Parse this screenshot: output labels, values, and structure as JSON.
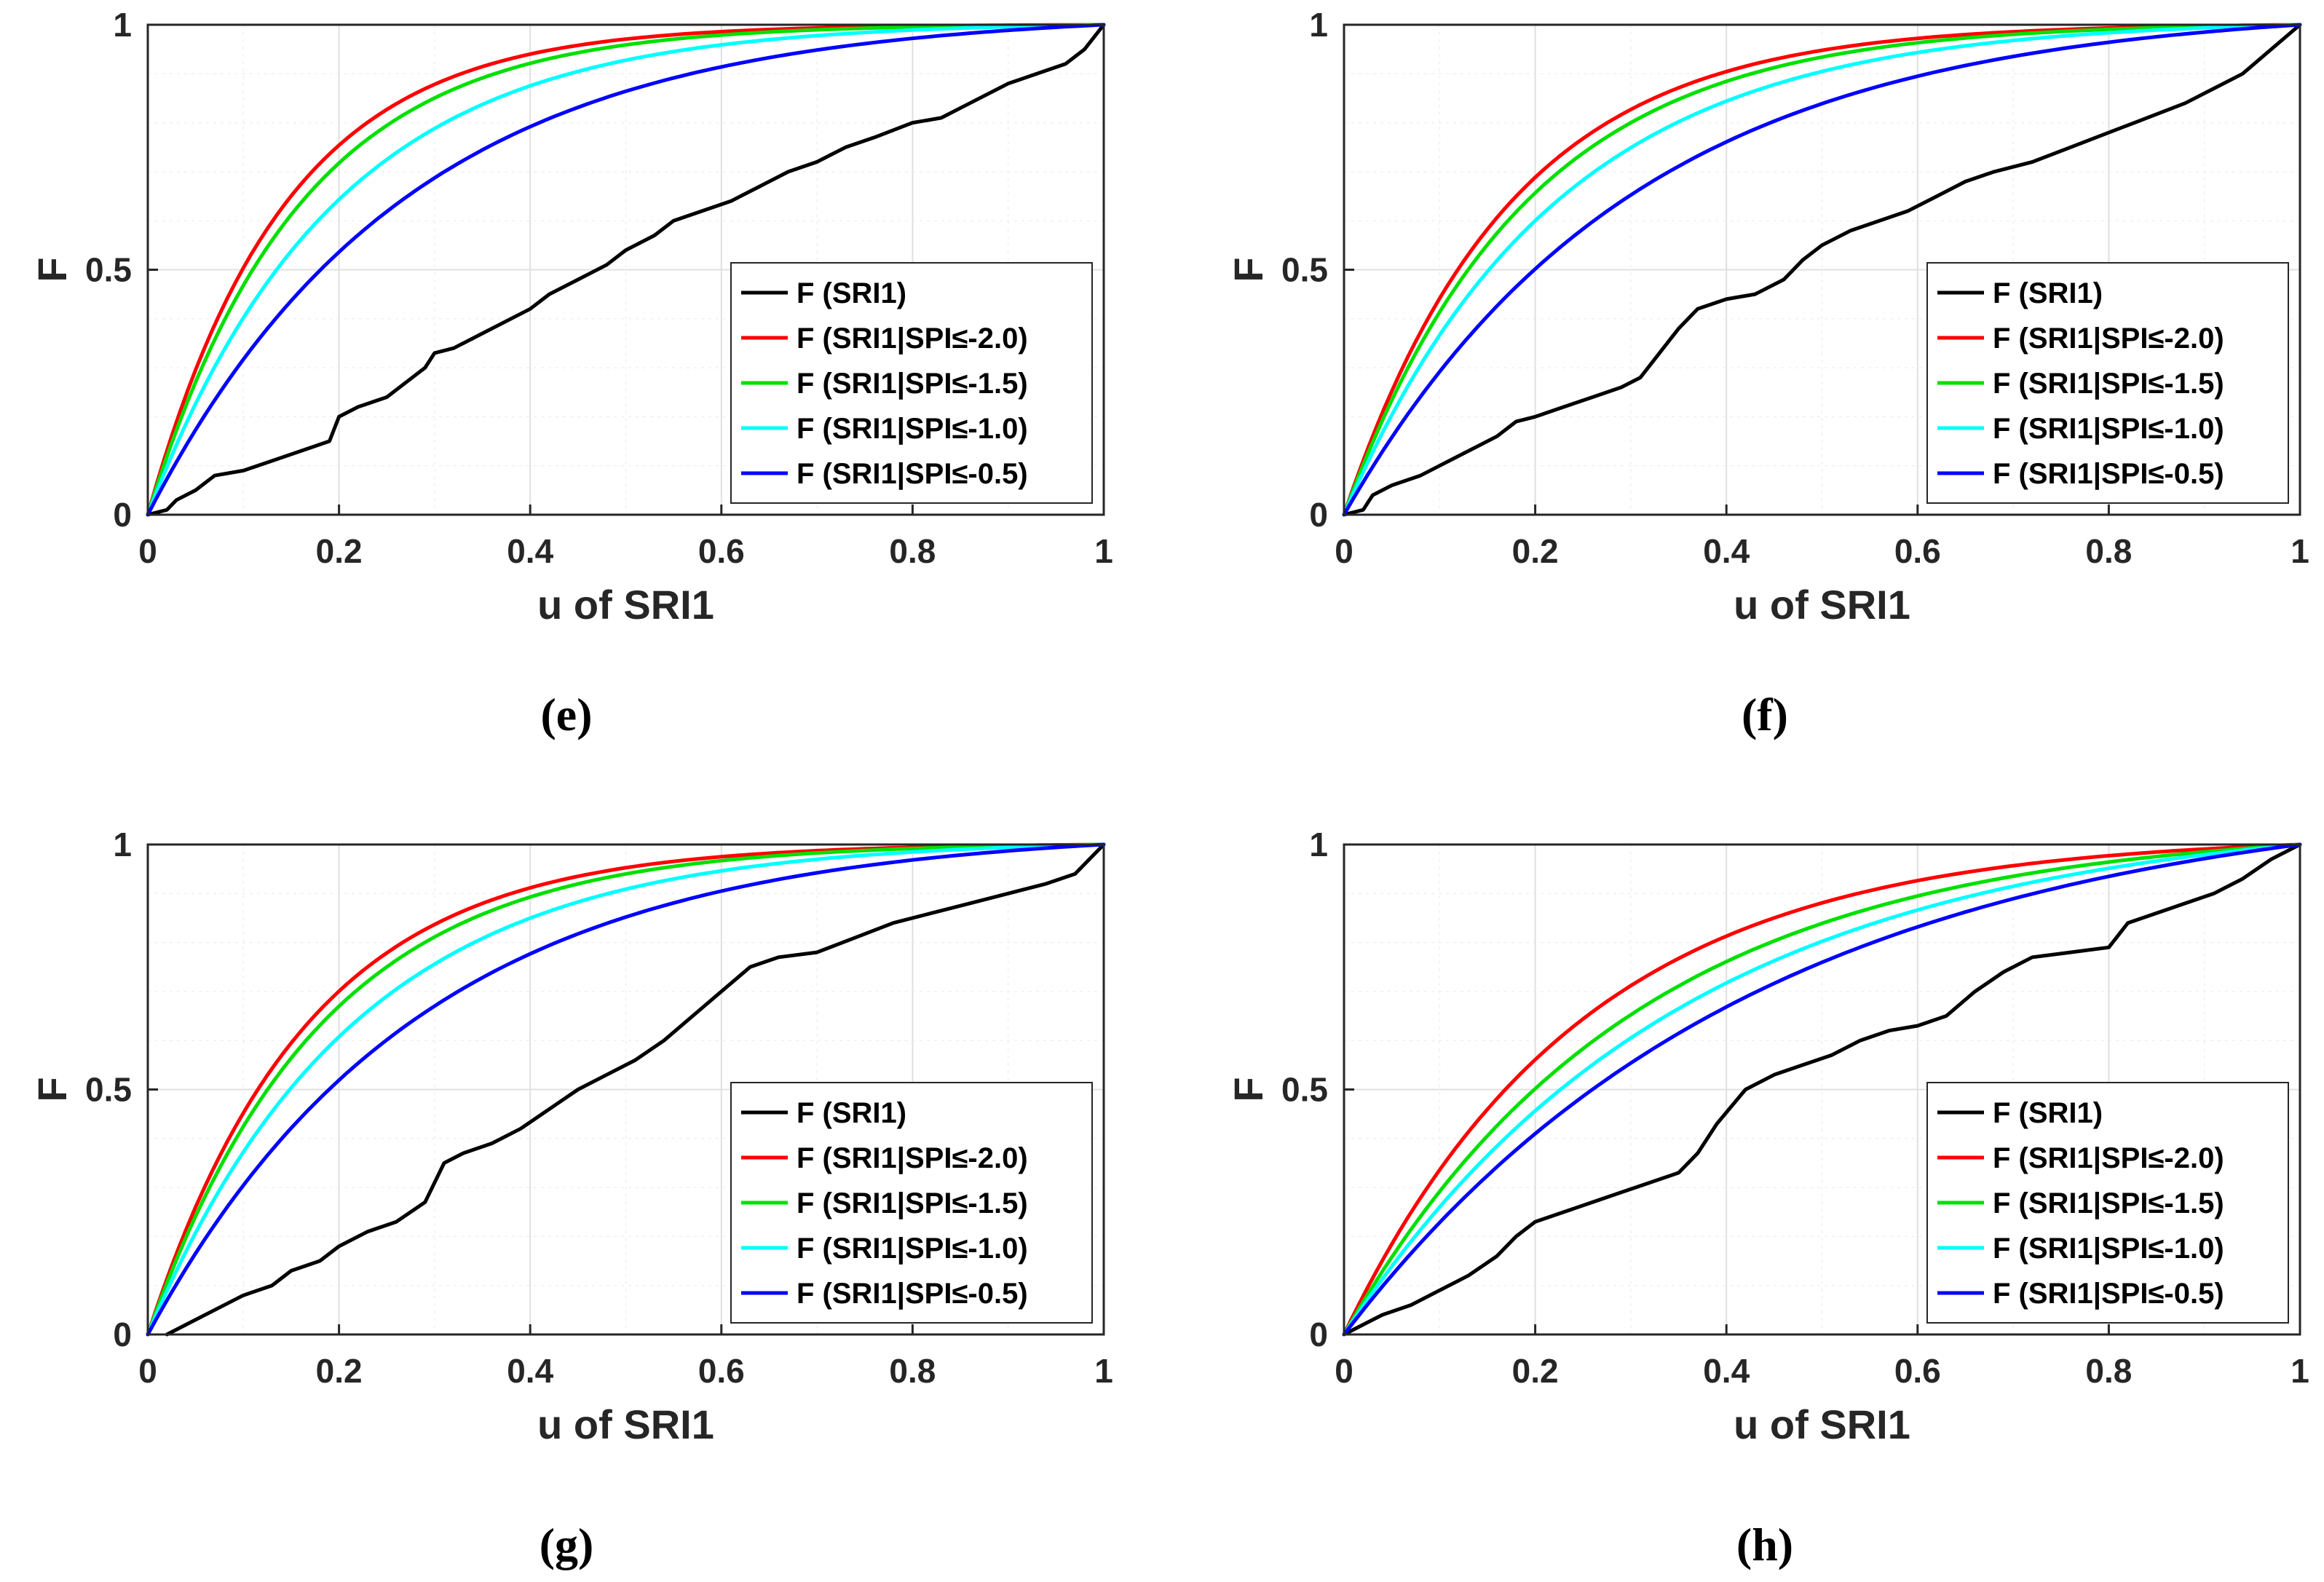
{
  "figure": {
    "colors": {
      "F (SRI1)": "#000000",
      "F (SRI1|SPI≤-2.0)": "#ff0000",
      "F (SRI1|SPI≤-1.5)": "#00e000",
      "F (SRI1|SPI≤-1.0)": "#00ffff",
      "F (SRI1|SPI≤-0.5)": "#0000ff"
    }
  },
  "chart_data": [
    {
      "type": "line",
      "caption": "(e)",
      "xlabel": "u of SRI1",
      "ylabel": "F",
      "xlim": [
        0,
        1
      ],
      "ylim": [
        0,
        1
      ],
      "xticks": [
        "0",
        "0.2",
        "0.4",
        "0.6",
        "0.8",
        "1"
      ],
      "yticks": [
        "0",
        "0.5",
        "1"
      ],
      "grid": true,
      "legend_position": "bottom-right",
      "series": [
        {
          "name": "F (SRI1)",
          "x": [
            0,
            0.02,
            0.03,
            0.05,
            0.07,
            0.1,
            0.13,
            0.16,
            0.19,
            0.2,
            0.22,
            0.25,
            0.27,
            0.29,
            0.3,
            0.32,
            0.35,
            0.38,
            0.4,
            0.42,
            0.45,
            0.48,
            0.5,
            0.53,
            0.55,
            0.58,
            0.61,
            0.64,
            0.67,
            0.7,
            0.73,
            0.76,
            0.8,
            0.83,
            0.86,
            0.9,
            0.93,
            0.96,
            0.98,
            1.0
          ],
          "y": [
            0,
            0.01,
            0.03,
            0.05,
            0.08,
            0.09,
            0.11,
            0.13,
            0.15,
            0.2,
            0.22,
            0.24,
            0.27,
            0.3,
            0.33,
            0.34,
            0.37,
            0.4,
            0.42,
            0.45,
            0.48,
            0.51,
            0.54,
            0.57,
            0.6,
            0.62,
            0.64,
            0.67,
            0.7,
            0.72,
            0.75,
            0.77,
            0.8,
            0.81,
            0.84,
            0.88,
            0.9,
            0.92,
            0.95,
            1.0
          ]
        },
        {
          "name": "F (SRI1|SPI≤-2.0)",
          "curve_exponent": 7.0
        },
        {
          "name": "F (SRI1|SPI≤-1.5)",
          "curve_exponent": 6.3
        },
        {
          "name": "F (SRI1|SPI≤-1.0)",
          "curve_exponent": 5.1
        },
        {
          "name": "F (SRI1|SPI≤-0.5)",
          "curve_exponent": 3.7
        }
      ]
    },
    {
      "type": "line",
      "caption": "(f)",
      "xlabel": "u of SRI1",
      "ylabel": "F",
      "xlim": [
        0,
        1
      ],
      "ylim": [
        0,
        1
      ],
      "xticks": [
        "0",
        "0.2",
        "0.4",
        "0.6",
        "0.8",
        "1"
      ],
      "yticks": [
        "0",
        "0.5",
        "1"
      ],
      "grid": true,
      "legend_position": "bottom-right",
      "series": [
        {
          "name": "F (SRI1)",
          "x": [
            0,
            0.02,
            0.03,
            0.05,
            0.08,
            0.1,
            0.13,
            0.16,
            0.18,
            0.2,
            0.23,
            0.26,
            0.29,
            0.31,
            0.33,
            0.35,
            0.37,
            0.4,
            0.43,
            0.46,
            0.48,
            0.5,
            0.53,
            0.56,
            0.59,
            0.62,
            0.65,
            0.68,
            0.72,
            0.76,
            0.8,
            0.84,
            0.88,
            0.91,
            0.94,
            0.97,
            1.0
          ],
          "y": [
            0,
            0.01,
            0.04,
            0.06,
            0.08,
            0.1,
            0.13,
            0.16,
            0.19,
            0.2,
            0.22,
            0.24,
            0.26,
            0.28,
            0.33,
            0.38,
            0.42,
            0.44,
            0.45,
            0.48,
            0.52,
            0.55,
            0.58,
            0.6,
            0.62,
            0.65,
            0.68,
            0.7,
            0.72,
            0.75,
            0.78,
            0.81,
            0.84,
            0.87,
            0.9,
            0.95,
            1.0
          ]
        },
        {
          "name": "F (SRI1|SPI≤-2.0)",
          "curve_exponent": 5.8
        },
        {
          "name": "F (SRI1|SPI≤-1.5)",
          "curve_exponent": 5.3
        },
        {
          "name": "F (SRI1|SPI≤-1.0)",
          "curve_exponent": 4.5
        },
        {
          "name": "F (SRI1|SPI≤-0.5)",
          "curve_exponent": 3.3
        }
      ]
    },
    {
      "type": "line",
      "caption": "(g)",
      "xlabel": "u of SRI1",
      "ylabel": "F",
      "xlim": [
        0,
        1
      ],
      "ylim": [
        0,
        1
      ],
      "xticks": [
        "0",
        "0.2",
        "0.4",
        "0.6",
        "0.8",
        "1"
      ],
      "yticks": [
        "0",
        "0.5",
        "1"
      ],
      "grid": true,
      "legend_position": "bottom-right",
      "series": [
        {
          "name": "F (SRI1)",
          "x": [
            0.02,
            0.04,
            0.07,
            0.1,
            0.13,
            0.15,
            0.18,
            0.2,
            0.23,
            0.26,
            0.29,
            0.31,
            0.33,
            0.36,
            0.39,
            0.42,
            0.45,
            0.48,
            0.51,
            0.54,
            0.57,
            0.6,
            0.63,
            0.66,
            0.7,
            0.74,
            0.78,
            0.82,
            0.86,
            0.9,
            0.94,
            0.97,
            1.0
          ],
          "y": [
            0,
            0.02,
            0.05,
            0.08,
            0.1,
            0.13,
            0.15,
            0.18,
            0.21,
            0.23,
            0.27,
            0.35,
            0.37,
            0.39,
            0.42,
            0.46,
            0.5,
            0.53,
            0.56,
            0.6,
            0.65,
            0.7,
            0.75,
            0.77,
            0.78,
            0.81,
            0.84,
            0.86,
            0.88,
            0.9,
            0.92,
            0.94,
            1.0
          ]
        },
        {
          "name": "F (SRI1|SPI≤-2.0)",
          "curve_exponent": 6.0
        },
        {
          "name": "F (SRI1|SPI≤-1.5)",
          "curve_exponent": 5.5
        },
        {
          "name": "F (SRI1|SPI≤-1.0)",
          "curve_exponent": 4.6
        },
        {
          "name": "F (SRI1|SPI≤-0.5)",
          "curve_exponent": 3.5
        }
      ]
    },
    {
      "type": "line",
      "caption": "(h)",
      "xlabel": "u of SRI1",
      "ylabel": "F",
      "xlim": [
        0,
        1
      ],
      "ylim": [
        0,
        1
      ],
      "xticks": [
        "0",
        "0.2",
        "0.4",
        "0.6",
        "0.8",
        "1"
      ],
      "yticks": [
        "0",
        "0.5",
        "1"
      ],
      "grid": true,
      "legend_position": "bottom-right",
      "series": [
        {
          "name": "F (SRI1)",
          "x": [
            0,
            0.02,
            0.04,
            0.07,
            0.1,
            0.13,
            0.16,
            0.18,
            0.2,
            0.23,
            0.26,
            0.29,
            0.32,
            0.35,
            0.37,
            0.39,
            0.42,
            0.45,
            0.48,
            0.51,
            0.54,
            0.57,
            0.6,
            0.63,
            0.66,
            0.69,
            0.72,
            0.76,
            0.8,
            0.82,
            0.85,
            0.88,
            0.91,
            0.94,
            0.97,
            1.0
          ],
          "y": [
            0,
            0.02,
            0.04,
            0.06,
            0.09,
            0.12,
            0.16,
            0.2,
            0.23,
            0.25,
            0.27,
            0.29,
            0.31,
            0.33,
            0.37,
            0.43,
            0.5,
            0.53,
            0.55,
            0.57,
            0.6,
            0.62,
            0.63,
            0.65,
            0.7,
            0.74,
            0.77,
            0.78,
            0.79,
            0.84,
            0.86,
            0.88,
            0.9,
            0.93,
            0.97,
            1.0
          ]
        },
        {
          "name": "F (SRI1|SPI≤-2.0)",
          "curve_exponent": 4.0
        },
        {
          "name": "F (SRI1|SPI≤-1.5)",
          "curve_exponent": 3.3
        },
        {
          "name": "F (SRI1|SPI≤-1.0)",
          "curve_exponent": 2.8
        },
        {
          "name": "F (SRI1|SPI≤-0.5)",
          "curve_exponent": 2.3
        }
      ]
    }
  ]
}
